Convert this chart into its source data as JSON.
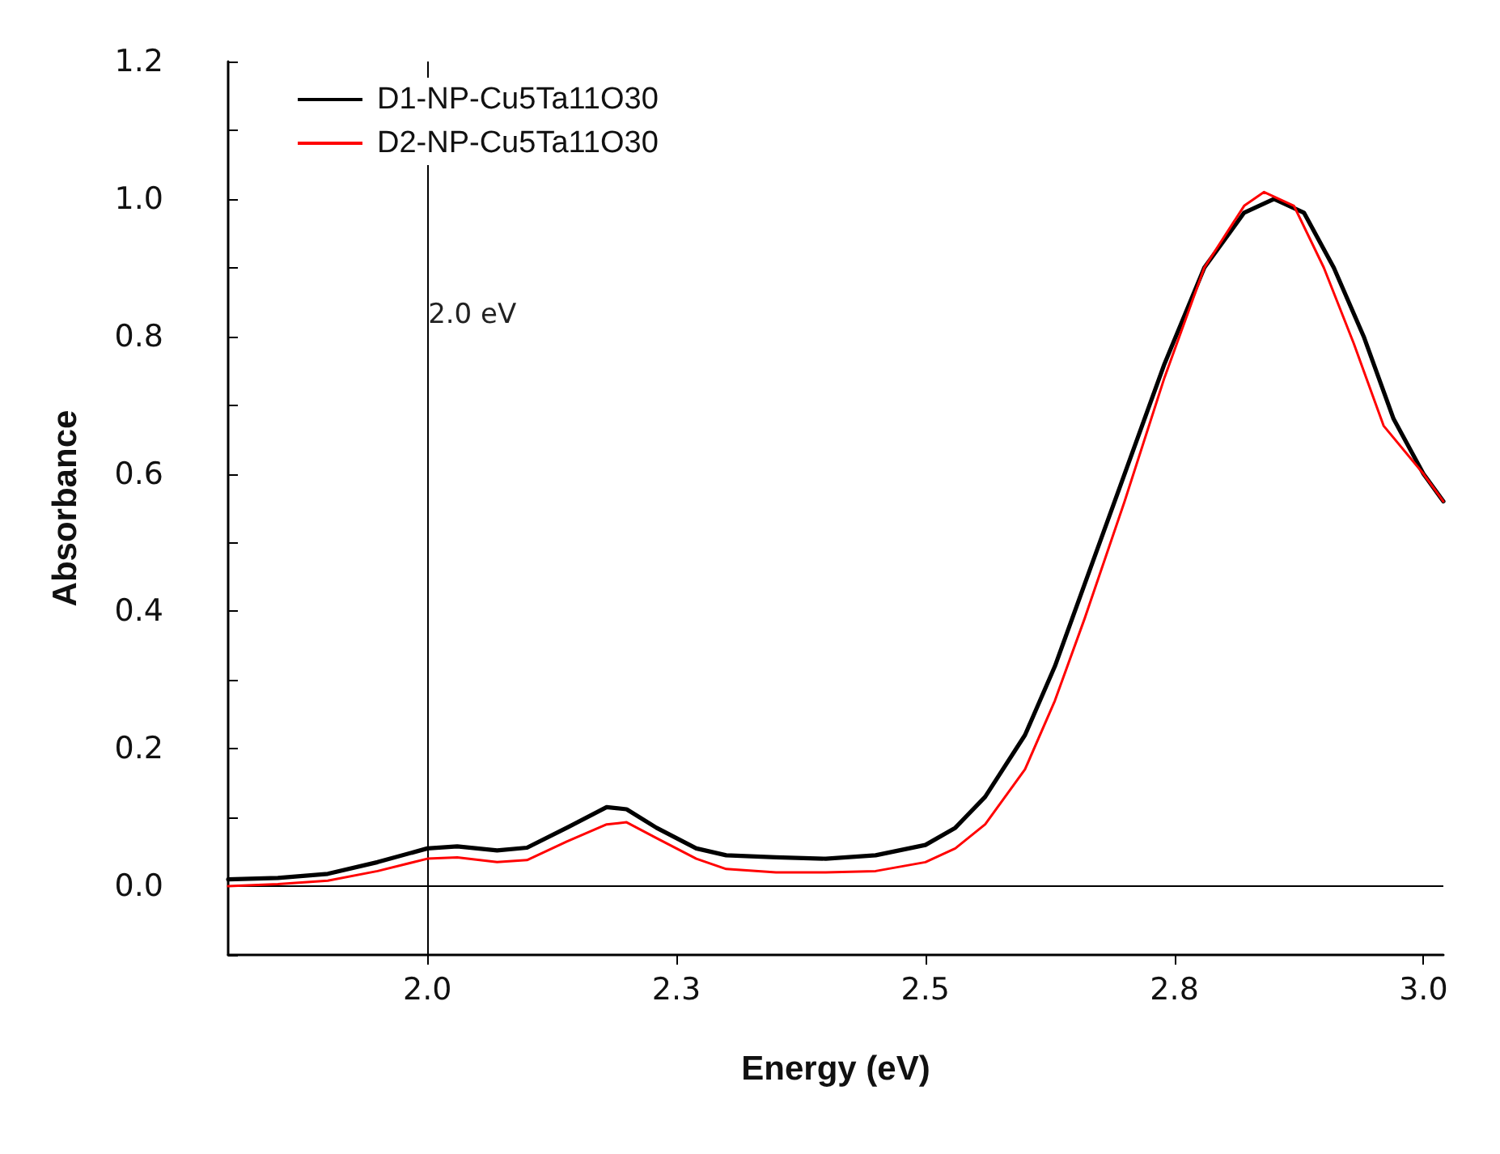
{
  "chart_data": {
    "type": "line",
    "xlabel": "Energy (eV)",
    "ylabel": "Absorbance",
    "xlim": [
      1.8,
      3.02
    ],
    "ylim": [
      -0.1,
      1.2
    ],
    "xticks": [
      {
        "value": 2,
        "label": "2.0"
      },
      {
        "value": 2.25,
        "label": "2.3"
      },
      {
        "value": 2.5,
        "label": "2.5"
      },
      {
        "value": 2.75,
        "label": "2.8"
      },
      {
        "value": 3,
        "label": "3.0"
      }
    ],
    "yticks": [
      {
        "value": -0.1,
        "label": null
      },
      {
        "value": 0,
        "label": "0.0"
      },
      {
        "value": 0.1,
        "label": null
      },
      {
        "value": 0.2,
        "label": "0.2"
      },
      {
        "value": 0.3,
        "label": null
      },
      {
        "value": 0.4,
        "label": "0.4"
      },
      {
        "value": 0.5,
        "label": null
      },
      {
        "value": 0.6,
        "label": "0.6"
      },
      {
        "value": 0.7,
        "label": null
      },
      {
        "value": 0.8,
        "label": "0.8"
      },
      {
        "value": 0.9,
        "label": null
      },
      {
        "value": 1.0,
        "label": "1.0"
      },
      {
        "value": 1.1,
        "label": null
      },
      {
        "value": 1.2,
        "label": "1.2"
      }
    ],
    "grid": false,
    "legend": "top left",
    "marker": "none",
    "line_style": "solid",
    "ref_lines": [
      {
        "axis": "x",
        "value": 2.0,
        "label": "2.0 eV",
        "color": "#000000"
      },
      {
        "axis": "y",
        "value": 0,
        "color": "#000000"
      }
    ],
    "series": [
      {
        "name": "D1-NP-Cu5Ta11O30",
        "color": "#000000",
        "x": [
          1.8,
          1.85,
          1.9,
          1.95,
          2.0,
          2.03,
          2.07,
          2.1,
          2.14,
          2.18,
          2.2,
          2.23,
          2.27,
          2.3,
          2.35,
          2.4,
          2.45,
          2.5,
          2.53,
          2.56,
          2.6,
          2.63,
          2.66,
          2.7,
          2.74,
          2.78,
          2.82,
          2.85,
          2.88,
          2.91,
          2.94,
          2.97,
          3.0,
          3.02
        ],
        "values": [
          0.01,
          0.012,
          0.018,
          0.035,
          0.055,
          0.058,
          0.052,
          0.056,
          0.085,
          0.115,
          0.112,
          0.085,
          0.055,
          0.045,
          0.042,
          0.04,
          0.045,
          0.06,
          0.085,
          0.13,
          0.22,
          0.32,
          0.44,
          0.6,
          0.76,
          0.9,
          0.98,
          1.0,
          0.98,
          0.9,
          0.8,
          0.68,
          0.6,
          0.56
        ]
      },
      {
        "name": "D2-NP-Cu5Ta11O30",
        "color": "#ff0000",
        "x": [
          1.8,
          1.85,
          1.9,
          1.95,
          2.0,
          2.03,
          2.07,
          2.1,
          2.14,
          2.18,
          2.2,
          2.23,
          2.27,
          2.3,
          2.35,
          2.4,
          2.45,
          2.5,
          2.53,
          2.56,
          2.6,
          2.63,
          2.66,
          2.7,
          2.74,
          2.78,
          2.82,
          2.84,
          2.87,
          2.9,
          2.93,
          2.96,
          3.0,
          3.02
        ],
        "values": [
          0,
          0.003,
          0.008,
          0.022,
          0.04,
          0.042,
          0.035,
          0.038,
          0.065,
          0.09,
          0.093,
          0.07,
          0.04,
          0.025,
          0.02,
          0.02,
          0.022,
          0.035,
          0.055,
          0.09,
          0.17,
          0.27,
          0.39,
          0.56,
          0.74,
          0.9,
          0.99,
          1.01,
          0.99,
          0.9,
          0.79,
          0.67,
          0.6,
          0.56
        ]
      }
    ]
  }
}
